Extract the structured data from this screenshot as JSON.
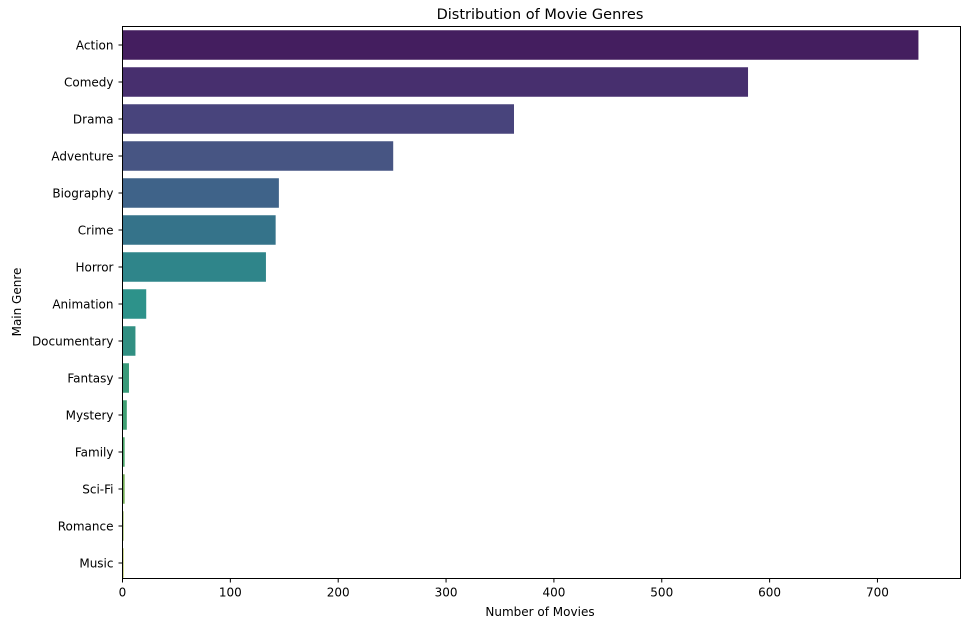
{
  "chart_data": {
    "type": "bar",
    "orientation": "horizontal",
    "title": "Distribution of Movie Genres",
    "xlabel": "Number of Movies",
    "ylabel": "Main Genre",
    "xlim": [
      0,
      777
    ],
    "xticks": [
      0,
      100,
      200,
      300,
      400,
      500,
      600,
      700
    ],
    "grid": false,
    "legend": "none",
    "categories": [
      "Action",
      "Comedy",
      "Drama",
      "Adventure",
      "Biography",
      "Crime",
      "Horror",
      "Animation",
      "Documentary",
      "Fantasy",
      "Mystery",
      "Family",
      "Sci-Fi",
      "Romance",
      "Music"
    ],
    "values": [
      738,
      580,
      363,
      251,
      145,
      142,
      133,
      22,
      12,
      6,
      4,
      2,
      2,
      1,
      1
    ],
    "colors": [
      "#441e5f",
      "#472f6e",
      "#48447c",
      "#475583",
      "#3f6389",
      "#35738a",
      "#2f858a",
      "#2d928a",
      "#318f82",
      "#399a79",
      "#3f9f72",
      "#4ca56a",
      "#73ab55",
      "#8eb44e",
      "#a6b845"
    ]
  }
}
